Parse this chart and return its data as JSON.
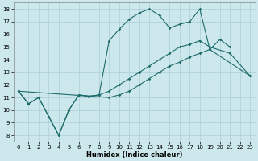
{
  "xlabel": "Humidex (Indice chaleur)",
  "xlim": [
    -0.5,
    23.5
  ],
  "ylim": [
    7.5,
    18.5
  ],
  "yticks": [
    8,
    9,
    10,
    11,
    12,
    13,
    14,
    15,
    16,
    17,
    18
  ],
  "xticks": [
    0,
    1,
    2,
    3,
    4,
    5,
    6,
    7,
    8,
    9,
    10,
    11,
    12,
    13,
    14,
    15,
    16,
    17,
    18,
    19,
    20,
    21,
    22,
    23
  ],
  "bg_color": "#cce8ec",
  "grid_color": "#aacdd4",
  "line_color": "#1e6b6b",
  "curve1_x": [
    0,
    1,
    2,
    3,
    4,
    5,
    6,
    7,
    8,
    9,
    10,
    11,
    12,
    13,
    14,
    15,
    16,
    17,
    18,
    19,
    20,
    21
  ],
  "curve1_y": [
    11.5,
    10.5,
    11.0,
    9.5,
    8.0,
    10.0,
    11.2,
    11.1,
    11.2,
    15.5,
    16.4,
    17.2,
    17.7,
    18.0,
    17.5,
    16.5,
    16.8,
    17.0,
    18.0,
    14.8,
    15.6,
    15.0
  ],
  "curve2_x": [
    0,
    1,
    2,
    3,
    4,
    5,
    6,
    7,
    8,
    9,
    10,
    11,
    12,
    13,
    14,
    15,
    16,
    17,
    18,
    19,
    21,
    22,
    23
  ],
  "curve2_y": [
    11.5,
    10.5,
    11.0,
    9.5,
    8.0,
    10.0,
    11.2,
    11.1,
    11.2,
    11.5,
    12.0,
    12.5,
    13.0,
    13.5,
    14.0,
    14.5,
    15.0,
    15.2,
    15.5,
    15.0,
    14.5,
    null,
    12.7
  ],
  "curve3_x": [
    0,
    9,
    10,
    11,
    12,
    13,
    14,
    15,
    16,
    17,
    18,
    19,
    23
  ],
  "curve3_y": [
    11.5,
    11.0,
    11.2,
    11.5,
    12.0,
    12.5,
    13.0,
    13.5,
    13.8,
    14.2,
    14.5,
    14.8,
    12.7
  ]
}
